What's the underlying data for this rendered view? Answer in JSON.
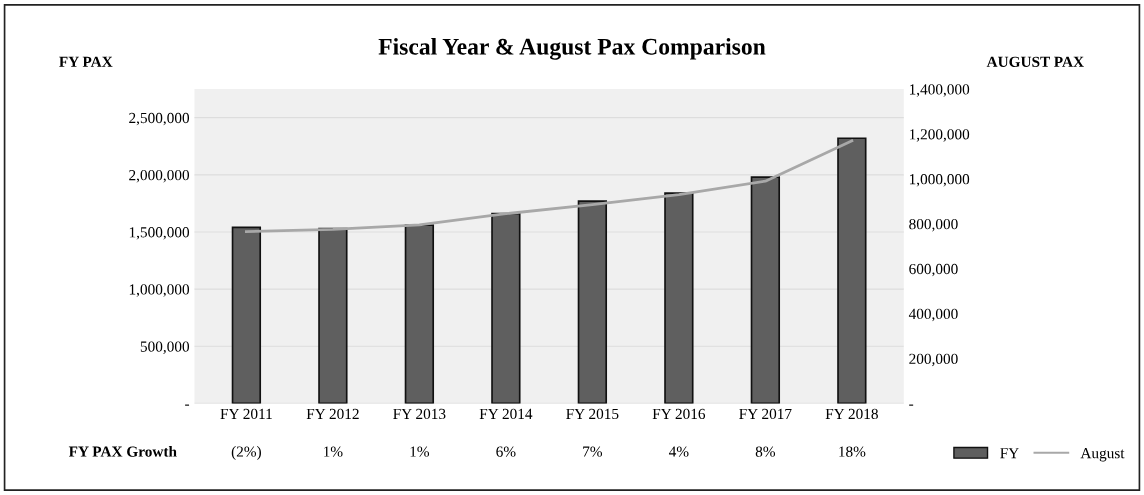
{
  "chart_data": {
    "type": "bar",
    "title": "Fiscal Year & August Pax Comparison",
    "ylabel": "FY PAX",
    "y2label": "AUGUST PAX",
    "categories": [
      "FY 2011",
      "FY 2012",
      "FY 2013",
      "FY 2014",
      "FY 2015",
      "FY 2016",
      "FY 2017",
      "FY 2018"
    ],
    "series": [
      {
        "name": "FY",
        "color": "#5f5f5f",
        "values": [
          1540000,
          1530000,
          1560000,
          1660000,
          1770000,
          1840000,
          1980000,
          2320000
        ]
      },
      {
        "name": "August",
        "type": "line",
        "axis": "y2",
        "color": "#a8a8a8",
        "values": [
          765000,
          775000,
          795000,
          845000,
          885000,
          930000,
          990000,
          1170000
        ]
      }
    ],
    "ylim": [
      0,
      2750000
    ],
    "yticks": [
      {
        "value": 0,
        "label": "-"
      },
      {
        "value": 500000,
        "label": "500,000"
      },
      {
        "value": 1000000,
        "label": "1,000,000"
      },
      {
        "value": 1500000,
        "label": "1,500,000"
      },
      {
        "value": 2000000,
        "label": "2,000,000"
      },
      {
        "value": 2500000,
        "label": "2,500,000"
      }
    ],
    "y2lim": [
      0,
      1400000
    ],
    "y2ticks": [
      {
        "value": 0,
        "label": "-"
      },
      {
        "value": 200000,
        "label": "200,000"
      },
      {
        "value": 400000,
        "label": "400,000"
      },
      {
        "value": 600000,
        "label": "600,000"
      },
      {
        "value": 800000,
        "label": "800,000"
      },
      {
        "value": 1000000,
        "label": "1,000,000"
      },
      {
        "value": 1200000,
        "label": "1,200,000"
      },
      {
        "value": 1400000,
        "label": "1,400,000"
      }
    ],
    "annotations": [
      "FY PAX Growth",
      "(2%)",
      "1%",
      "1%",
      "6%",
      "7%",
      "4%",
      "8%",
      "18%"
    ],
    "grid": "y",
    "legend": "bottom right"
  }
}
